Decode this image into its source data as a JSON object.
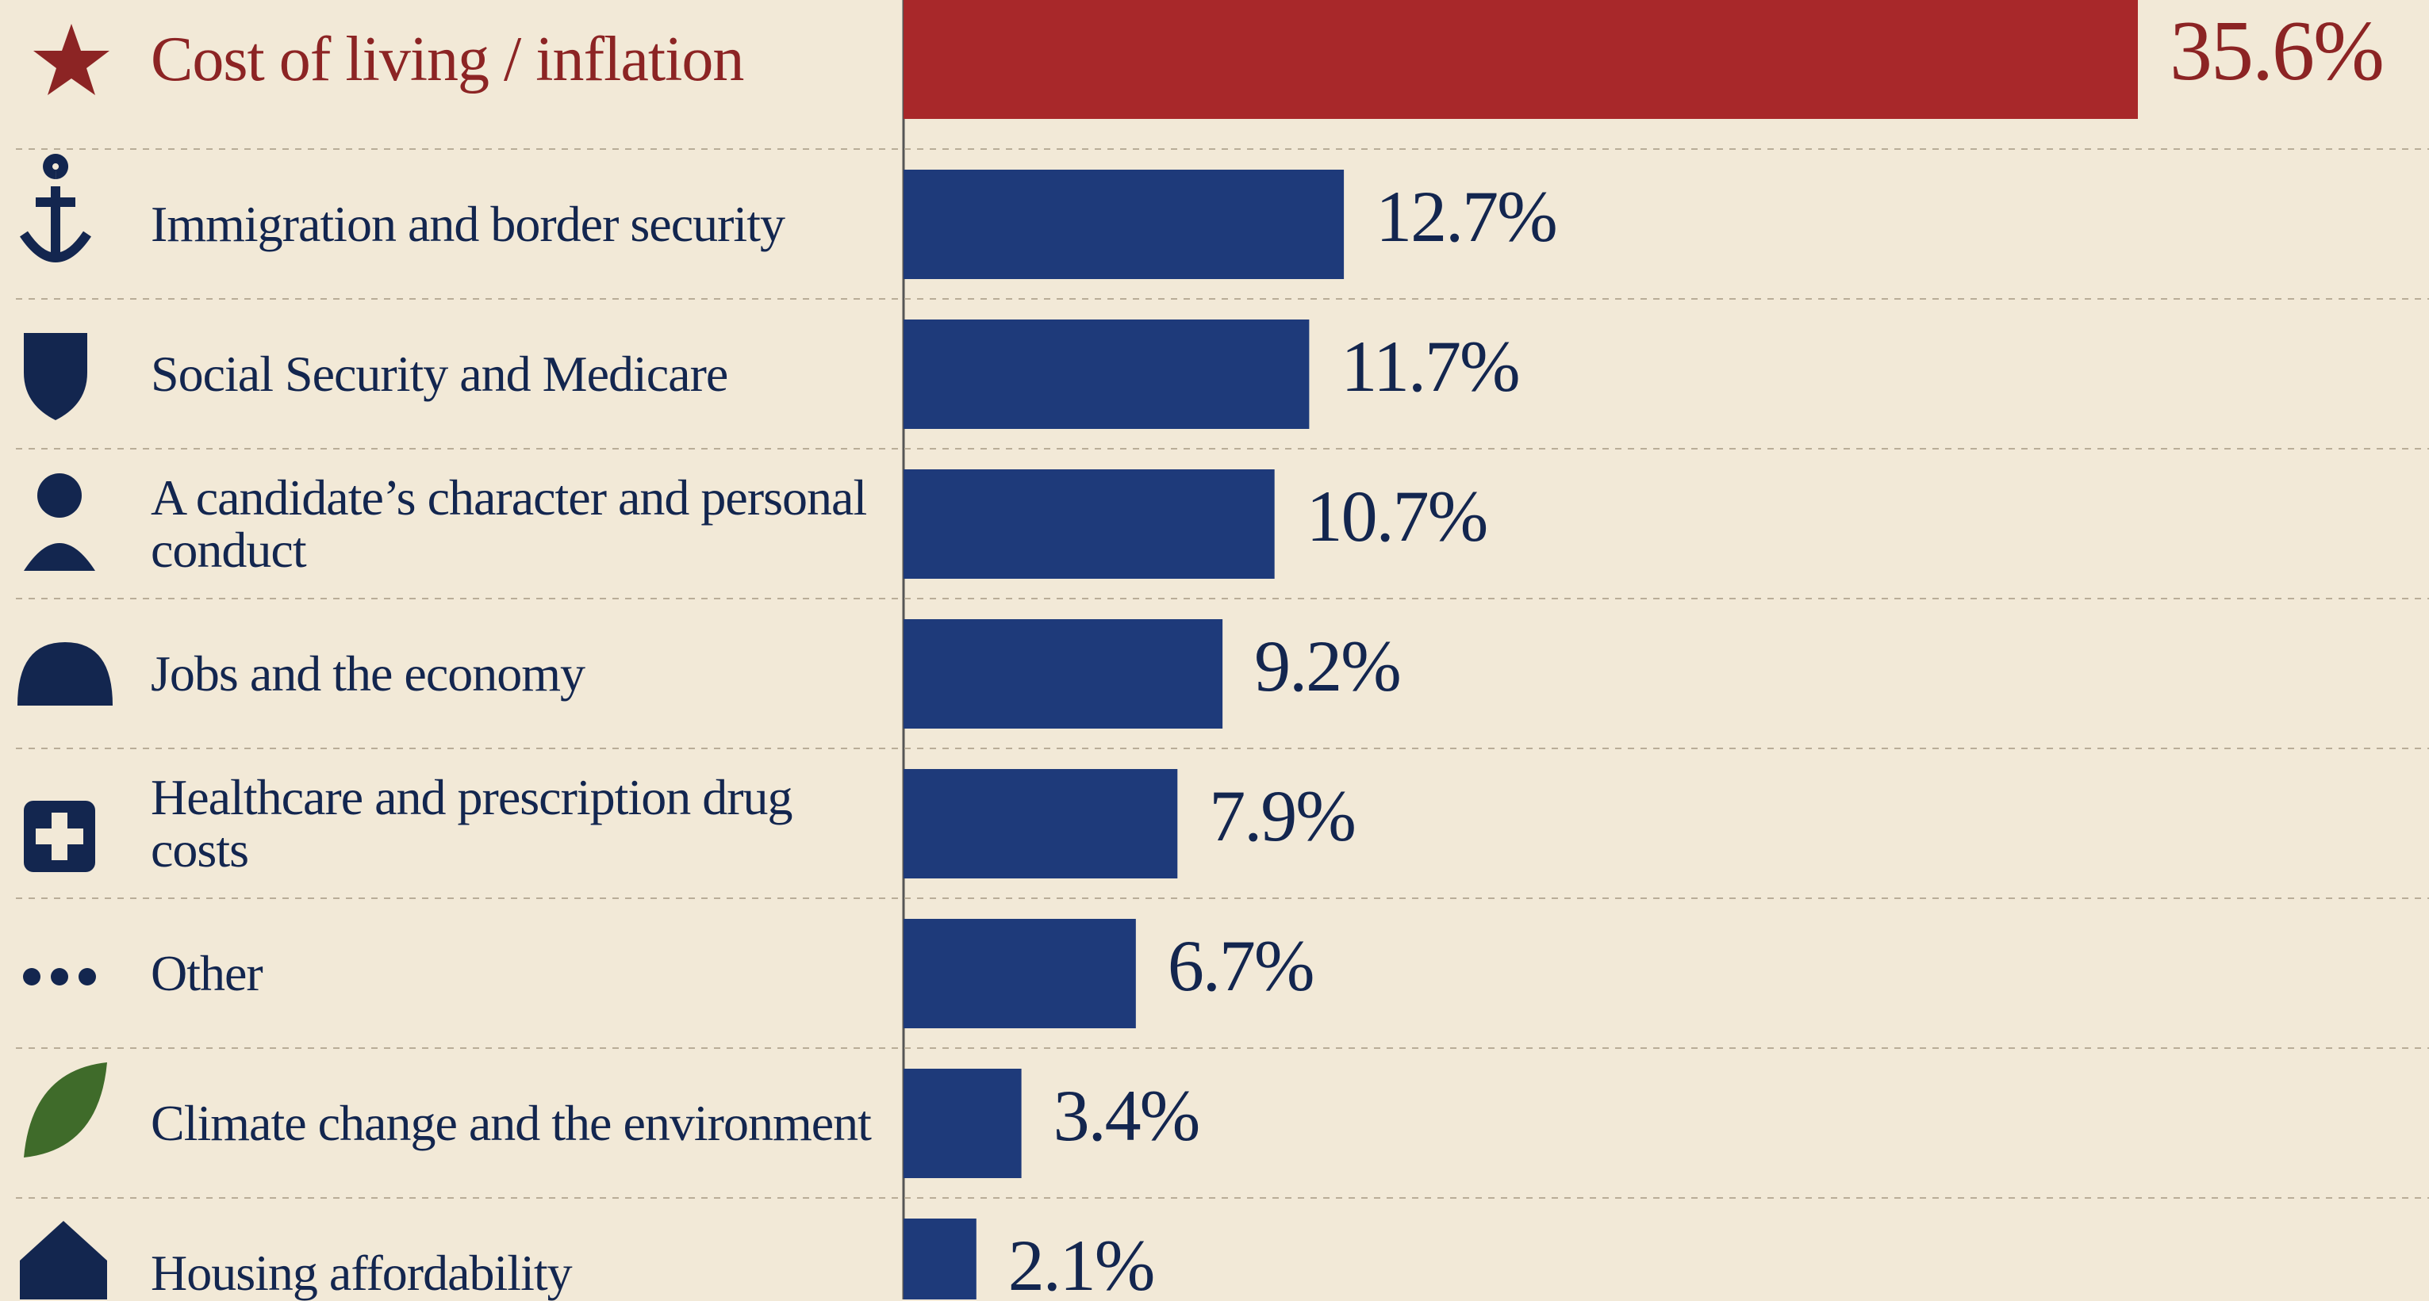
{
  "chart_data": {
    "type": "bar",
    "orientation": "horizontal",
    "categories": [
      "Cost of living / inflation",
      "Immigration and border security",
      "Social Security and Medicare",
      "A candidate’s character and personal conduct",
      "Jobs and the economy",
      "Healthcare and prescription drug costs",
      "Other",
      "Climate change and the environment",
      "Housing affordability"
    ],
    "values": [
      35.6,
      12.7,
      11.7,
      10.7,
      9.2,
      7.9,
      6.7,
      3.4,
      2.1
    ],
    "value_labels": [
      "35.6%",
      "12.7%",
      "11.7%",
      "10.7%",
      "9.2%",
      "7.9%",
      "6.7%",
      "3.4%",
      "2.1%"
    ],
    "colors": [
      "#a8282a",
      "#1e3a7a",
      "#1e3a7a",
      "#1e3a7a",
      "#1e3a7a",
      "#1e3a7a",
      "#1e3a7a",
      "#1e3a7a",
      "#1e3a7a"
    ]
  }
}
